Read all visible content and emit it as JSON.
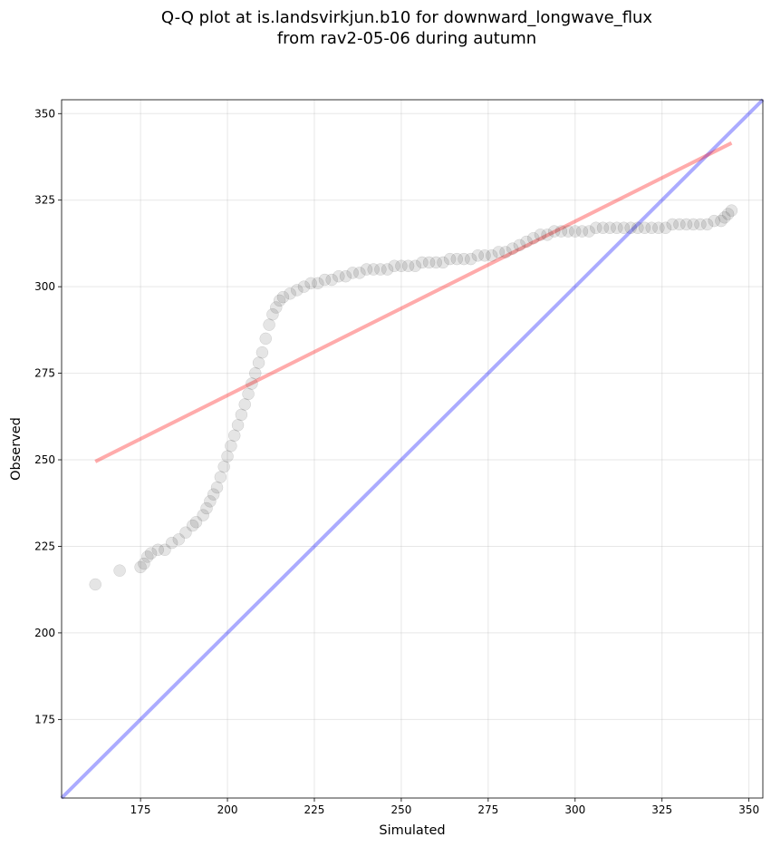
{
  "chart_data": {
    "type": "scatter",
    "title_lines": [
      "Q-Q plot at is.landsvirkjun.b10 for downward_longwave_flux",
      "from rav2-05-06 during autumn"
    ],
    "xlabel": "Simulated",
    "ylabel": "Observed",
    "xlim": [
      152.3,
      354.0
    ],
    "ylim": [
      152.3,
      354.0
    ],
    "xticks": [
      175,
      200,
      225,
      250,
      275,
      300,
      325,
      350
    ],
    "yticks": [
      175,
      200,
      225,
      250,
      275,
      300,
      325,
      350
    ],
    "grid": true,
    "scatter_color": "#000000",
    "identity_line": {
      "color": "#0000ff",
      "from": [
        152.3,
        152.3
      ],
      "to": [
        354.0,
        354.0
      ]
    },
    "fit_line": {
      "color": "#ff0000",
      "from": [
        162.0,
        249.5
      ],
      "to": [
        345.0,
        341.5
      ]
    },
    "points": {
      "x": [
        162,
        169,
        175,
        176,
        177,
        178,
        180,
        182,
        184,
        186,
        188,
        190,
        191,
        193,
        194,
        195,
        196,
        197,
        198,
        199,
        200,
        201,
        202,
        203,
        204,
        205,
        206,
        207,
        208,
        209,
        210,
        211,
        212,
        213,
        214,
        215,
        216,
        218,
        220,
        222,
        224,
        226,
        228,
        230,
        232,
        234,
        236,
        238,
        240,
        242,
        244,
        246,
        248,
        250,
        252,
        254,
        256,
        258,
        260,
        262,
        264,
        266,
        268,
        270,
        272,
        274,
        276,
        278,
        280,
        282,
        284,
        286,
        288,
        290,
        292,
        294,
        296,
        298,
        300,
        302,
        304,
        306,
        308,
        310,
        312,
        314,
        316,
        318,
        320,
        322,
        324,
        326,
        328,
        330,
        332,
        334,
        336,
        338,
        340,
        342,
        343,
        344,
        345
      ],
      "y": [
        214,
        218,
        219,
        220,
        222,
        223,
        224,
        224,
        226,
        227,
        229,
        231,
        232,
        234,
        236,
        238,
        240,
        242,
        245,
        248,
        251,
        254,
        257,
        260,
        263,
        266,
        269,
        272,
        275,
        278,
        281,
        285,
        289,
        292,
        294,
        296,
        297,
        298,
        299,
        300,
        301,
        301,
        302,
        302,
        303,
        303,
        304,
        304,
        305,
        305,
        305,
        305,
        306,
        306,
        306,
        306,
        307,
        307,
        307,
        307,
        308,
        308,
        308,
        308,
        309,
        309,
        309,
        310,
        310,
        311,
        312,
        313,
        314,
        315,
        315,
        316,
        316,
        316,
        316,
        316,
        316,
        317,
        317,
        317,
        317,
        317,
        317,
        317,
        317,
        317,
        317,
        317,
        318,
        318,
        318,
        318,
        318,
        318,
        319,
        319,
        320,
        321,
        322
      ]
    }
  }
}
